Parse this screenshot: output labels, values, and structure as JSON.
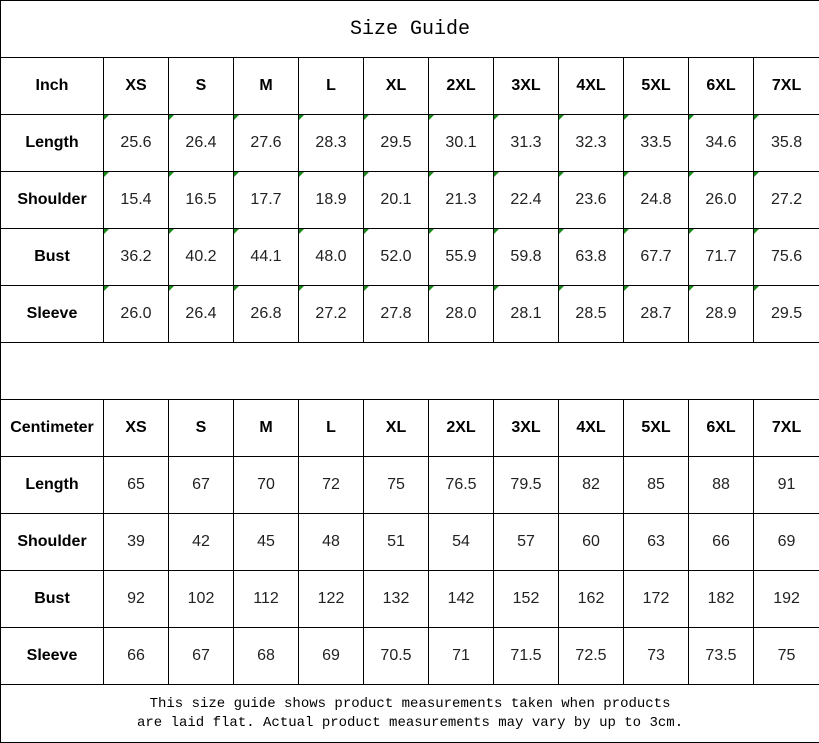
{
  "title": "Size Guide",
  "sizes": [
    "XS",
    "S",
    "M",
    "L",
    "XL",
    "2XL",
    "3XL",
    "4XL",
    "5XL",
    "6XL",
    "7XL"
  ],
  "inch": {
    "unit_label": "Inch",
    "rows": [
      {
        "label": "Length",
        "values": [
          "25.6",
          "26.4",
          "27.6",
          "28.3",
          "29.5",
          "30.1",
          "31.3",
          "32.3",
          "33.5",
          "34.6",
          "35.8"
        ]
      },
      {
        "label": "Shoulder",
        "values": [
          "15.4",
          "16.5",
          "17.7",
          "18.9",
          "20.1",
          "21.3",
          "22.4",
          "23.6",
          "24.8",
          "26.0",
          "27.2"
        ]
      },
      {
        "label": "Bust",
        "values": [
          "36.2",
          "40.2",
          "44.1",
          "48.0",
          "52.0",
          "55.9",
          "59.8",
          "63.8",
          "67.7",
          "71.7",
          "75.6"
        ]
      },
      {
        "label": "Sleeve",
        "values": [
          "26.0",
          "26.4",
          "26.8",
          "27.2",
          "27.8",
          "28.0",
          "28.1",
          "28.5",
          "28.7",
          "28.9",
          "29.5"
        ]
      }
    ]
  },
  "centimeter": {
    "unit_label": "Centimeter",
    "rows": [
      {
        "label": "Length",
        "values": [
          "65",
          "67",
          "70",
          "72",
          "75",
          "76.5",
          "79.5",
          "82",
          "85",
          "88",
          "91"
        ]
      },
      {
        "label": "Shoulder",
        "values": [
          "39",
          "42",
          "45",
          "48",
          "51",
          "54",
          "57",
          "60",
          "63",
          "66",
          "69"
        ]
      },
      {
        "label": "Bust",
        "values": [
          "92",
          "102",
          "112",
          "122",
          "132",
          "142",
          "152",
          "162",
          "172",
          "182",
          "192"
        ]
      },
      {
        "label": "Sleeve",
        "values": [
          "66",
          "67",
          "68",
          "69",
          "70.5",
          "71",
          "71.5",
          "72.5",
          "73",
          "73.5",
          "75"
        ]
      }
    ]
  },
  "footer": {
    "line1": "This size guide shows product measurements taken when products",
    "line2": "are laid flat. Actual product measurements may vary by up to 3cm."
  },
  "colors": {
    "text_marker": "#1a8a1a",
    "border": "#000000"
  }
}
